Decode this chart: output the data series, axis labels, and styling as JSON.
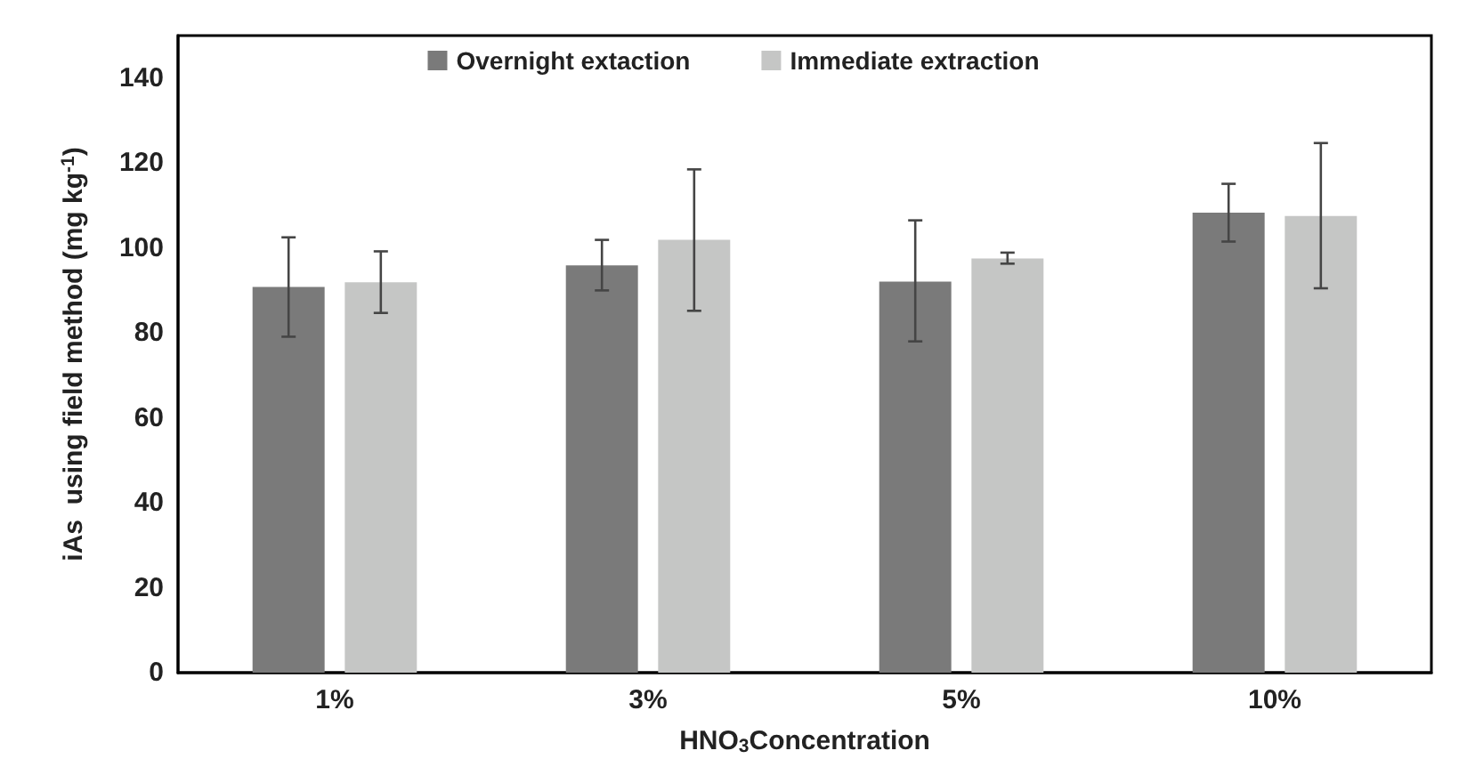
{
  "chart_data": {
    "type": "bar",
    "xlabel": "HNO$_{3}$Concentration",
    "ylabel": "iAs  using field method (mg kg$^{-1}$)",
    "categories": [
      "1%",
      "3%",
      "5%",
      "10%"
    ],
    "series": [
      {
        "name": "Overnight extaction",
        "color": "#7a7a7a",
        "values": [
          90.8,
          95.9,
          92.1,
          108.3
        ],
        "errors": [
          [
            79.1,
            102.5
          ],
          [
            90,
            101.9
          ],
          [
            78,
            106.5
          ],
          [
            101.5,
            115.1
          ]
        ]
      },
      {
        "name": "Immediate extraction",
        "color": "#c5c6c5",
        "values": [
          91.9,
          101.9,
          97.5,
          107.5
        ],
        "errors": [
          [
            84.7,
            99.2
          ],
          [
            85.2,
            118.5
          ],
          [
            96.3,
            98.9
          ],
          [
            90.5,
            124.7
          ]
        ]
      }
    ],
    "ylim": [
      0,
      150
    ],
    "yticks": [
      0,
      20,
      40,
      60,
      80,
      100,
      120,
      140
    ],
    "grid": false,
    "legend": "top"
  }
}
